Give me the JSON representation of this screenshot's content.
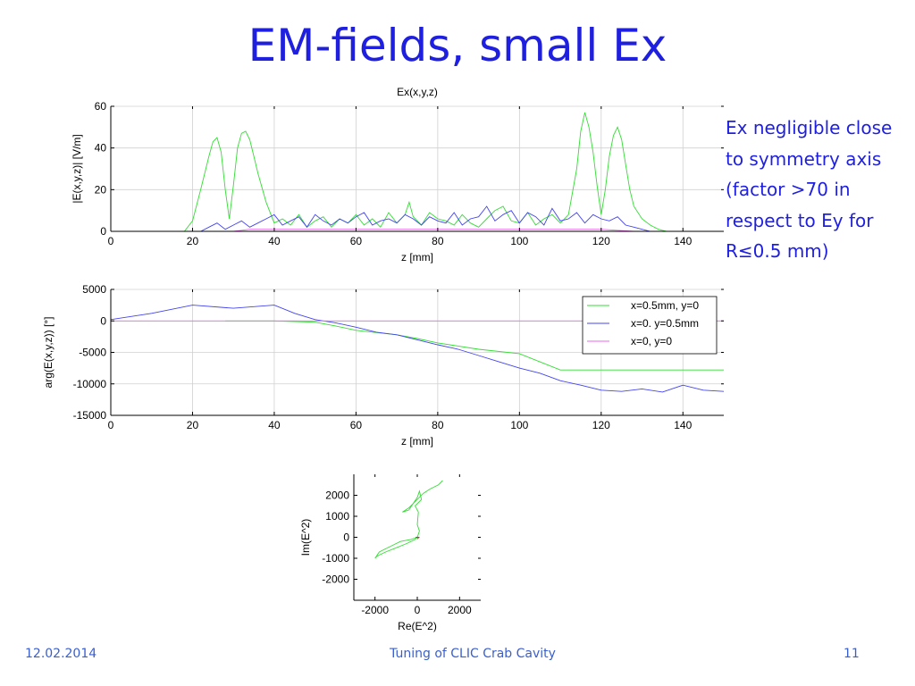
{
  "slide": {
    "title": "EM-fields, small Ex",
    "note_lines": [
      "Ex negligible close",
      "to symmetry axis",
      "(factor >70 in",
      "respect to Ey for",
      "R≤0.5 mm)"
    ],
    "footer_date": "12.02.2014",
    "footer_center": "Tuning of CLIC Crab Cavity",
    "footer_page": "11"
  },
  "chart_data": [
    {
      "type": "line",
      "title": "Ex(x,y,z)",
      "xlabel": "z  [mm]",
      "ylabel": "|E(x,y,z)|  [V/m]",
      "xlim": [
        0,
        150
      ],
      "ylim": [
        0,
        60
      ],
      "xticks": [
        0,
        20,
        40,
        60,
        80,
        100,
        120,
        140
      ],
      "yticks": [
        0,
        20,
        40,
        60
      ],
      "grid": true,
      "series": [
        {
          "color": "#33dd33",
          "x": [
            0,
            18,
            20,
            22,
            24,
            25,
            26,
            27,
            28,
            29,
            30,
            31,
            32,
            33,
            34,
            35,
            36,
            38,
            40,
            42,
            44,
            46,
            48,
            50,
            52,
            54,
            56,
            58,
            60,
            62,
            64,
            66,
            68,
            70,
            72,
            73,
            74,
            76,
            78,
            80,
            82,
            84,
            86,
            88,
            90,
            92,
            94,
            96,
            98,
            100,
            102,
            104,
            106,
            108,
            110,
            112,
            114,
            115,
            116,
            117,
            118,
            119,
            120,
            121,
            122,
            123,
            124,
            125,
            126,
            127,
            128,
            130,
            132,
            134,
            136,
            150
          ],
          "y": [
            0,
            0,
            5,
            20,
            36,
            43,
            45,
            38,
            20,
            6,
            22,
            40,
            47,
            48,
            44,
            36,
            28,
            14,
            4,
            6,
            3,
            8,
            2,
            5,
            7,
            2,
            6,
            4,
            8,
            3,
            6,
            2,
            9,
            4,
            8,
            14,
            7,
            3,
            9,
            6,
            5,
            3,
            8,
            4,
            2,
            6,
            10,
            12,
            5,
            4,
            9,
            3,
            6,
            8,
            4,
            8,
            30,
            48,
            57,
            50,
            38,
            22,
            8,
            20,
            36,
            46,
            50,
            44,
            32,
            20,
            12,
            6,
            3,
            1,
            0,
            0
          ]
        },
        {
          "color": "#4444ee",
          "x": [
            0,
            22,
            24,
            26,
            28,
            30,
            32,
            34,
            36,
            38,
            40,
            42,
            44,
            46,
            48,
            50,
            52,
            54,
            56,
            58,
            60,
            62,
            64,
            66,
            68,
            70,
            72,
            74,
            76,
            78,
            80,
            82,
            84,
            86,
            88,
            90,
            92,
            94,
            96,
            98,
            100,
            102,
            104,
            106,
            108,
            110,
            112,
            114,
            116,
            118,
            120,
            122,
            124,
            126,
            128,
            130,
            132,
            134,
            150
          ],
          "y": [
            0,
            0,
            2,
            4,
            1,
            3,
            5,
            2,
            4,
            6,
            8,
            3,
            5,
            7,
            2,
            8,
            5,
            3,
            6,
            4,
            7,
            9,
            3,
            5,
            6,
            4,
            8,
            6,
            3,
            7,
            5,
            4,
            9,
            3,
            6,
            7,
            12,
            5,
            8,
            10,
            4,
            9,
            7,
            3,
            11,
            5,
            6,
            9,
            4,
            8,
            6,
            5,
            7,
            3,
            2,
            1,
            0,
            0,
            0
          ]
        },
        {
          "color": "#ee66ee",
          "x": [
            0,
            30,
            34,
            40,
            50,
            60,
            70,
            80,
            90,
            100,
            110,
            120,
            128,
            150
          ],
          "y": [
            0,
            0,
            1,
            1,
            1,
            1,
            1,
            1,
            1,
            1,
            1,
            1,
            0,
            0
          ]
        }
      ]
    },
    {
      "type": "line",
      "title": "",
      "xlabel": "z  [mm]",
      "ylabel": "arg(E(x,y,z))  [°]",
      "xlim": [
        0,
        150
      ],
      "ylim": [
        -15000,
        5000
      ],
      "xticks": [
        0,
        20,
        40,
        60,
        80,
        100,
        120,
        140
      ],
      "yticks": [
        -15000,
        -10000,
        -5000,
        0,
        5000
      ],
      "grid": true,
      "legend": "top-right",
      "series": [
        {
          "name": "x=0.5mm, y=0",
          "color": "#33dd33",
          "x": [
            28,
            40,
            50,
            55,
            60,
            70,
            75,
            80,
            90,
            100,
            105,
            110,
            120,
            130,
            150
          ],
          "y": [
            0,
            0,
            -200,
            -800,
            -1500,
            -2200,
            -2800,
            -3500,
            -4500,
            -5200,
            -6500,
            -7800,
            -7800,
            -7800,
            -7800
          ]
        },
        {
          "name": "x=0. y=0.5mm",
          "color": "#4444ee",
          "x": [
            0,
            10,
            20,
            30,
            40,
            45,
            50,
            55,
            60,
            65,
            70,
            75,
            80,
            85,
            90,
            95,
            100,
            105,
            110,
            115,
            120,
            125,
            130,
            135,
            140,
            145,
            150
          ],
          "y": [
            200,
            1200,
            2500,
            2000,
            2500,
            1200,
            200,
            -300,
            -1000,
            -1800,
            -2200,
            -3000,
            -3800,
            -4500,
            -5500,
            -6500,
            -7500,
            -8300,
            -9500,
            -10200,
            -11000,
            -11200,
            -10800,
            -11300,
            -10200,
            -11000,
            -11200
          ]
        },
        {
          "name": "x=0, y=0",
          "color": "#ee66ee",
          "x": [
            0,
            150
          ],
          "y": [
            0,
            0
          ]
        }
      ]
    },
    {
      "type": "line",
      "title": "",
      "xlabel": "Re(E^2)",
      "ylabel": "Im(E^2)",
      "xlim": [
        -3000,
        3000
      ],
      "ylim": [
        -3000,
        3000
      ],
      "xticks": [
        -2000,
        0,
        2000
      ],
      "yticks": [
        -2000,
        -1000,
        0,
        1000,
        2000
      ],
      "grid": false,
      "series": [
        {
          "color": "#33dd33",
          "x": [
            0,
            -300,
            -800,
            -1200,
            -1500,
            -1800,
            -2000,
            -1900,
            -1500,
            -1000,
            -500,
            -100,
            0,
            100,
            0,
            50,
            -100,
            200,
            100,
            0,
            -200,
            -400,
            -700,
            -400,
            0,
            300,
            600,
            1000,
            1200
          ],
          "y": [
            0,
            -100,
            -200,
            -400,
            -550,
            -700,
            -1000,
            -900,
            -700,
            -500,
            -300,
            -100,
            0,
            300,
            600,
            1200,
            1500,
            1800,
            2200,
            1900,
            1600,
            1300,
            1200,
            1400,
            1800,
            2100,
            2300,
            2500,
            2700
          ]
        },
        {
          "color": "#dd2222",
          "x": [
            -80,
            80,
            0
          ],
          "y": [
            0,
            0,
            -80
          ]
        }
      ]
    }
  ]
}
